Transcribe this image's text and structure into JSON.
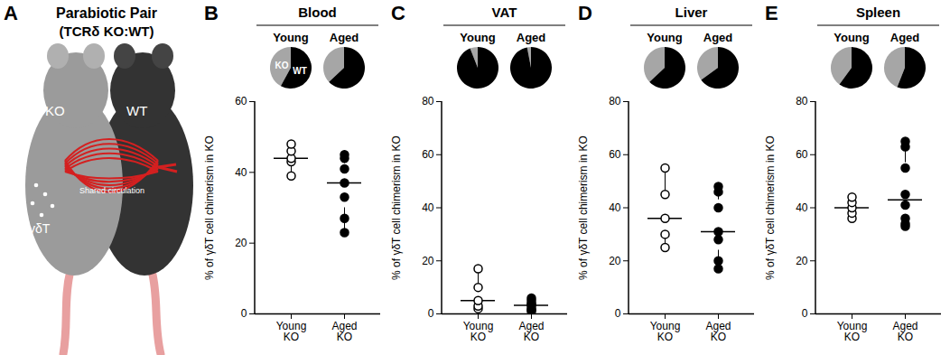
{
  "figure": {
    "panel": "A",
    "title": "Parabiotic Pair",
    "subtitle": "(TCRδ KO:WT)",
    "labels": {
      "left_mouse": "KO",
      "right_mouse": "WT",
      "cells": "γδT",
      "circulation": "Shared circulation"
    }
  },
  "chart_data": [
    {
      "panel": "B",
      "type": "box",
      "title": "Blood",
      "pie_colors": [
        "#a6a6a6",
        "#000000"
      ],
      "pies": [
        {
          "name": "Young",
          "values": [
            42,
            58
          ],
          "labels": [
            "KO",
            "WT"
          ]
        },
        {
          "name": "Aged",
          "values": [
            37,
            63
          ]
        }
      ],
      "categories": [
        "Young KO",
        "Aged KO"
      ],
      "points": [
        {
          "values": [
            39,
            43,
            44,
            46,
            48
          ],
          "marker": "open"
        },
        {
          "values": [
            23,
            27,
            33,
            37,
            41,
            44,
            45
          ],
          "marker": "filled"
        }
      ],
      "ylabel": "% of γδT cell chimerism in KO",
      "ylim": [
        0,
        60
      ],
      "yticks": [
        0,
        20,
        40,
        60
      ],
      "grid": false
    },
    {
      "panel": "C",
      "type": "box",
      "title": "VAT",
      "pie_colors": [
        "#a6a6a6",
        "#000000"
      ],
      "pies": [
        {
          "name": "Young",
          "values": [
            6,
            94
          ]
        },
        {
          "name": "Aged",
          "values": [
            3,
            97
          ]
        }
      ],
      "categories": [
        "Young KO",
        "Aged KO"
      ],
      "points": [
        {
          "values": [
            2,
            3,
            5,
            10,
            17
          ],
          "marker": "open"
        },
        {
          "values": [
            1,
            1.5,
            2,
            3,
            3.5,
            4,
            5,
            6
          ],
          "marker": "filled"
        }
      ],
      "ylabel": "% of γδT cell chimerism in KO",
      "ylim": [
        0,
        80
      ],
      "yticks": [
        0,
        20,
        40,
        60,
        80
      ],
      "grid": false
    },
    {
      "panel": "D",
      "type": "box",
      "title": "Liver",
      "pie_colors": [
        "#a6a6a6",
        "#000000"
      ],
      "pies": [
        {
          "name": "Young",
          "values": [
            37,
            63
          ]
        },
        {
          "name": "Aged",
          "values": [
            35,
            65
          ]
        }
      ],
      "categories": [
        "Young KO",
        "Aged KO"
      ],
      "points": [
        {
          "values": [
            25,
            30,
            36,
            45,
            55
          ],
          "marker": "open"
        },
        {
          "values": [
            17,
            20,
            28,
            31,
            40,
            46,
            48
          ],
          "marker": "filled"
        }
      ],
      "ylabel": "% of γδT cell chimerism in KO",
      "ylim": [
        0,
        80
      ],
      "yticks": [
        0,
        20,
        40,
        60,
        80
      ],
      "grid": false
    },
    {
      "panel": "E",
      "type": "box",
      "title": "Spleen",
      "pie_colors": [
        "#a6a6a6",
        "#000000"
      ],
      "pies": [
        {
          "name": "Young",
          "values": [
            40,
            60
          ]
        },
        {
          "name": "Aged",
          "values": [
            44,
            56
          ]
        }
      ],
      "categories": [
        "Young KO",
        "Aged KO"
      ],
      "points": [
        {
          "values": [
            36,
            38,
            40,
            42,
            44
          ],
          "marker": "open"
        },
        {
          "values": [
            33,
            34,
            36,
            41,
            45,
            55,
            63,
            65
          ],
          "marker": "filled"
        }
      ],
      "ylabel": "% of γδT cell chimerism in KO",
      "ylim": [
        0,
        80
      ],
      "yticks": [
        0,
        20,
        40,
        60,
        80
      ],
      "grid": false
    }
  ]
}
